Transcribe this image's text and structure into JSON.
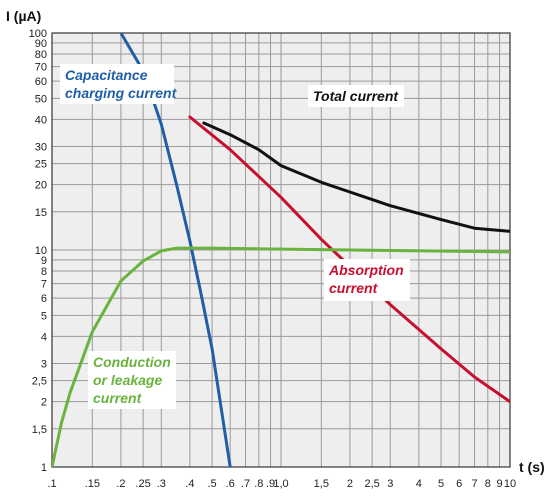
{
  "chart_data": {
    "type": "line",
    "title": "",
    "xlabel": "t (s)",
    "ylabel": "I (µA)",
    "x_scale": "log",
    "y_scale": "log",
    "xlim": [
      0.1,
      10
    ],
    "ylim": [
      1,
      100
    ],
    "grid": true,
    "x_ticks": [
      ".1",
      ".15",
      ".2",
      ".25",
      ".3",
      ".4",
      ".5",
      ".6",
      ".7",
      ".8",
      ".9",
      "1,0",
      "1,5",
      "2",
      "2,5",
      "3",
      "4",
      "5",
      "6",
      "7",
      "8",
      "9",
      "10"
    ],
    "y_ticks": [
      "1",
      "1,5",
      "2",
      "2,5",
      "3",
      "4",
      "5",
      "6",
      "7",
      "8",
      "9",
      "10",
      "15",
      "20",
      "25",
      "30",
      "40",
      "50",
      "60",
      "70",
      "80",
      "90",
      "100"
    ],
    "series": [
      {
        "name": "Capacitance charging current",
        "color": "#1f5fa6",
        "x": [
          0.2,
          0.25,
          0.3,
          0.35,
          0.4,
          0.45,
          0.5,
          0.6
        ],
        "y": [
          100,
          67,
          38,
          20,
          11,
          6.1,
          3.5,
          1.0
        ]
      },
      {
        "name": "Total current",
        "color": "#111111",
        "x": [
          0.46,
          0.6,
          0.8,
          1.0,
          1.5,
          2,
          3,
          5,
          7,
          10
        ],
        "y": [
          38.5,
          34,
          29,
          24.5,
          20.5,
          18.5,
          16,
          13.8,
          12.6,
          12.2
        ]
      },
      {
        "name": "Absorption current",
        "color": "#c8102e",
        "x": [
          0.4,
          0.6,
          1.0,
          1.5,
          2,
          3,
          5,
          7,
          10
        ],
        "y": [
          41,
          29,
          17.5,
          11.2,
          8.4,
          5.6,
          3.5,
          2.6,
          2.0
        ]
      },
      {
        "name": "Conduction or leakage current",
        "color": "#6ab33e",
        "x": [
          0.1,
          0.11,
          0.12,
          0.15,
          0.2,
          0.25,
          0.3,
          0.35,
          0.5,
          1.0,
          10
        ],
        "y": [
          1.0,
          1.6,
          2.2,
          4.2,
          7.2,
          8.9,
          9.9,
          10.2,
          10.2,
          10.1,
          9.8
        ]
      }
    ],
    "annotations": [
      {
        "text": "Capacitance charging current",
        "lines": [
          "Capacitance",
          "charging current"
        ],
        "color": "#1f5fa6"
      },
      {
        "text": "Total current",
        "lines": [
          "Total current"
        ],
        "color": "#111111"
      },
      {
        "text": "Absorption current",
        "lines": [
          "Absorption",
          "current"
        ],
        "color": "#c8102e"
      },
      {
        "text": "Conduction or leakage current",
        "lines": [
          "Conduction",
          "or leakage",
          "current"
        ],
        "color": "#6ab33e"
      }
    ],
    "colors": {
      "background": "#ffffff",
      "plot_area": "#eeeeee",
      "grid": "#9a9a9a",
      "frame": "#333333"
    }
  }
}
